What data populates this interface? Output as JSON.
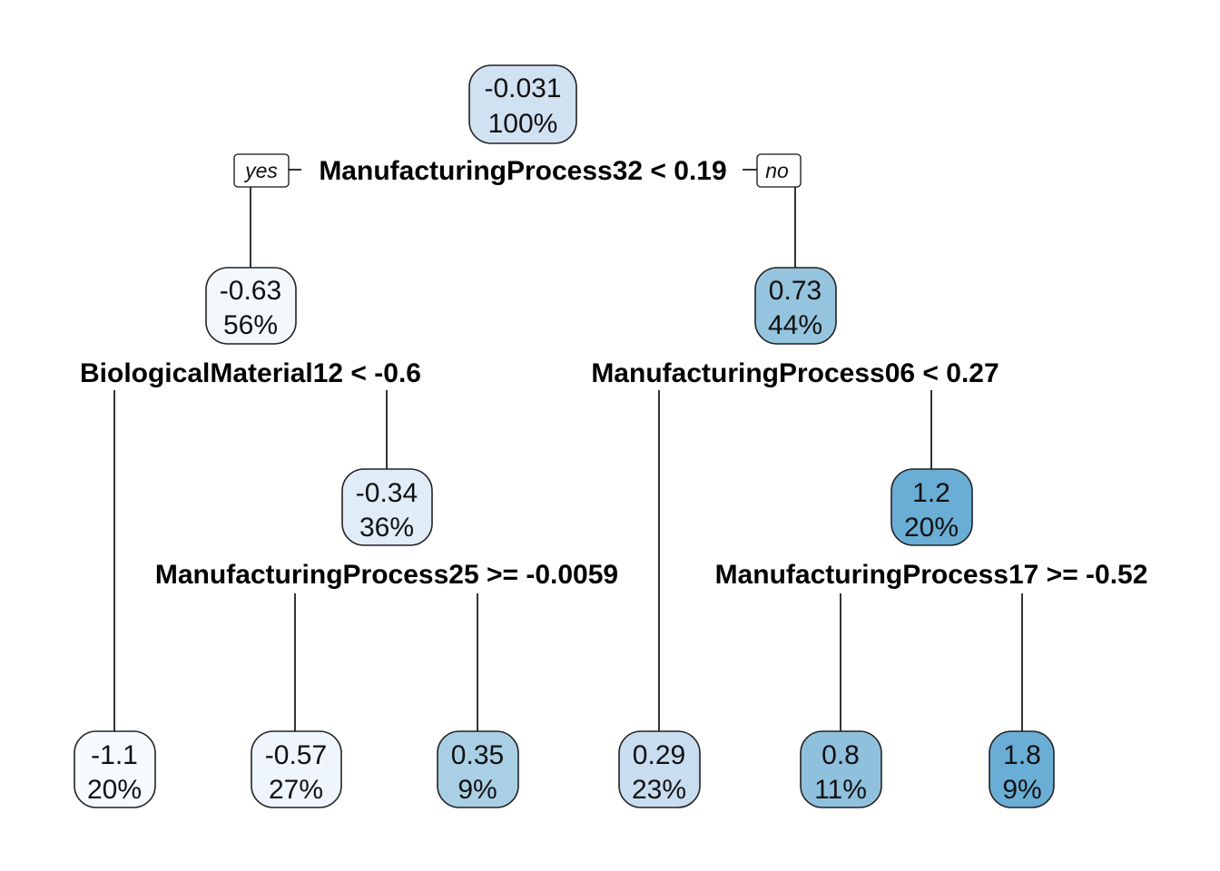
{
  "tree": {
    "branch_labels": {
      "yes": "yes",
      "no": "no"
    },
    "nodes": {
      "root": {
        "value": "-0.031",
        "percent": "100%",
        "fill": "#d0e1f2"
      },
      "n2": {
        "value": "-0.63",
        "percent": "56%",
        "fill": "#f3f8fd"
      },
      "n3": {
        "value": "0.73",
        "percent": "44%",
        "fill": "#95c4de"
      },
      "n5": {
        "value": "-0.34",
        "percent": "36%",
        "fill": "#e0ecf8"
      },
      "n7": {
        "value": "1.2",
        "percent": "20%",
        "fill": "#6aaed6"
      },
      "leaf1": {
        "value": "-1.1",
        "percent": "20%",
        "fill": "#f7fbff"
      },
      "leaf2": {
        "value": "-0.57",
        "percent": "27%",
        "fill": "#eef5fc"
      },
      "leaf3": {
        "value": "0.35",
        "percent": "9%",
        "fill": "#a9cfe5"
      },
      "leaf4": {
        "value": "0.29",
        "percent": "23%",
        "fill": "#c9ddf0"
      },
      "leaf5": {
        "value": "0.8",
        "percent": "11%",
        "fill": "#8fc1de"
      },
      "leaf6": {
        "value": "1.8",
        "percent": "9%",
        "fill": "#6aaed6"
      }
    },
    "splits": {
      "root": "ManufacturingProcess32 < 0.19",
      "n2": "BiologicalMaterial12 < -0.6",
      "n3": "ManufacturingProcess06 < 0.27",
      "n5": "ManufacturingProcess25 >= -0.0059",
      "n7": "ManufacturingProcess17 >= -0.52"
    }
  }
}
